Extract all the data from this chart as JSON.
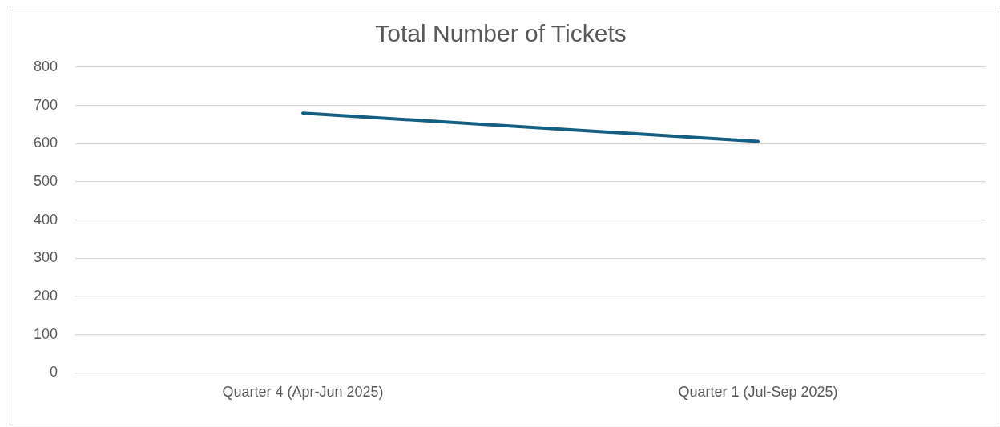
{
  "chart_data": {
    "type": "line",
    "title": "Total Number of Tickets",
    "categories": [
      "Quarter 4 (Apr-Jun 2025)",
      "Quarter 1 (Jul-Sep 2025)"
    ],
    "series": [
      {
        "color": "#156082",
        "values": [
          680,
          606
        ]
      }
    ],
    "ylim": [
      0,
      800
    ],
    "yticks": [
      0,
      100,
      200,
      300,
      400,
      500,
      600,
      700,
      800
    ],
    "grid": "y",
    "legend": false,
    "marker": "none",
    "line_style": "solid"
  }
}
